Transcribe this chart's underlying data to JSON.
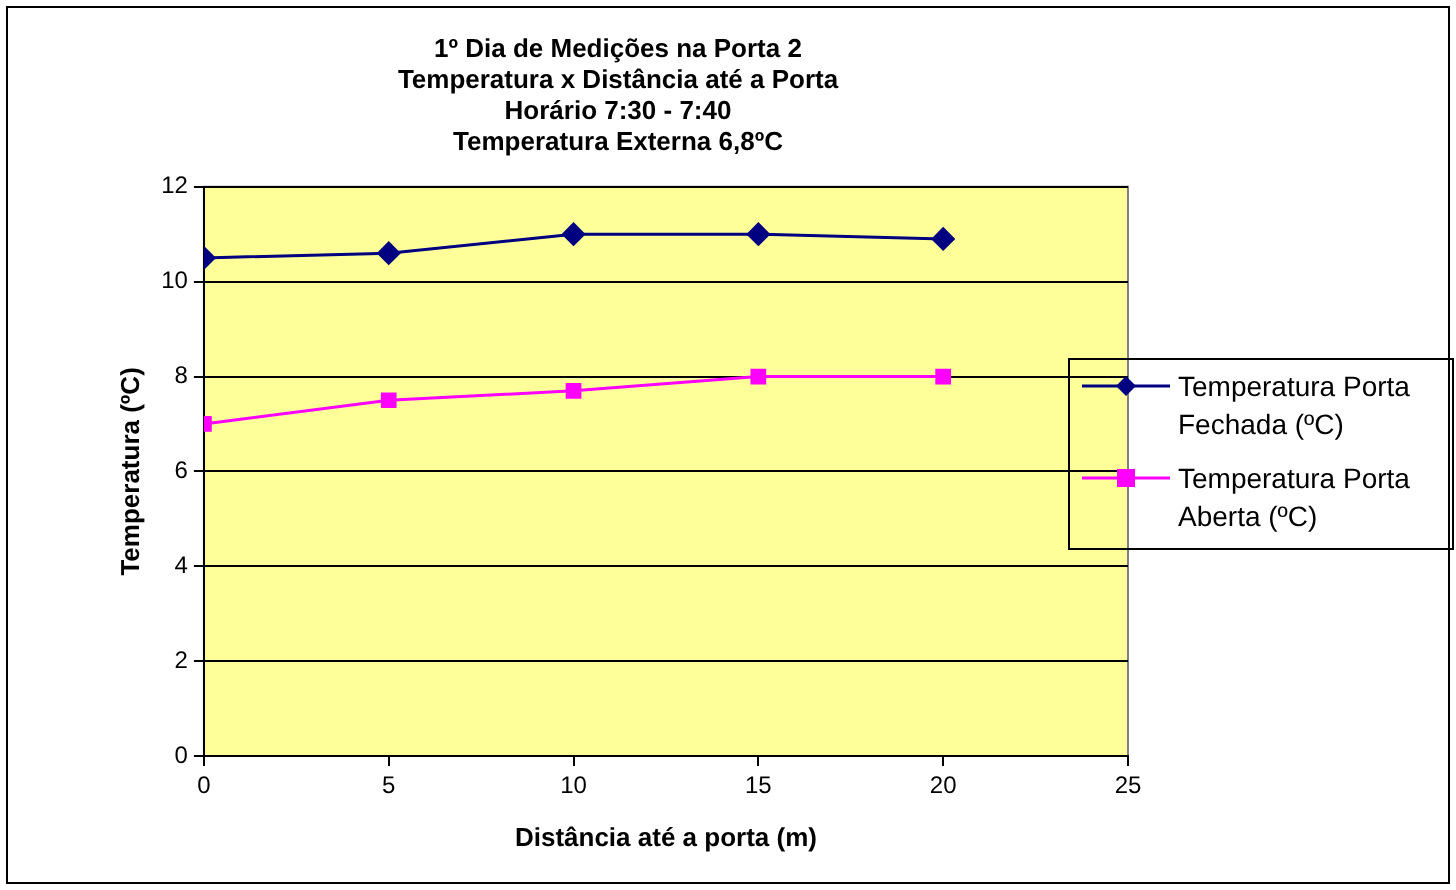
{
  "chart_data": {
    "type": "line",
    "title": "1º Dia de Medições na Porta 2\nTemperatura x Distância até a Porta\nHorário 7:30 - 7:40\nTemperatura Externa 6,8ºC",
    "xlabel": "Distância até a porta (m)",
    "ylabel": "Temperatura (ºC)",
    "x": [
      0,
      5,
      10,
      15,
      20
    ],
    "series": [
      {
        "name": "Temperatura Porta Fechada (ºC)",
        "color": "#000080",
        "marker": "diamond",
        "values": [
          10.5,
          10.6,
          11,
          11,
          10.9
        ]
      },
      {
        "name": "Temperatura Porta Aberta (ºC)",
        "color": "#ff00ff",
        "marker": "square",
        "values": [
          7.0,
          7.5,
          7.7,
          8,
          8
        ]
      }
    ],
    "xlim": [
      0,
      25
    ],
    "xticks": [
      0,
      5,
      10,
      15,
      20,
      25
    ],
    "ylim": [
      0,
      12
    ],
    "yticks": [
      0,
      2,
      4,
      6,
      8,
      10,
      12
    ],
    "grid": "y",
    "legend": "right"
  }
}
